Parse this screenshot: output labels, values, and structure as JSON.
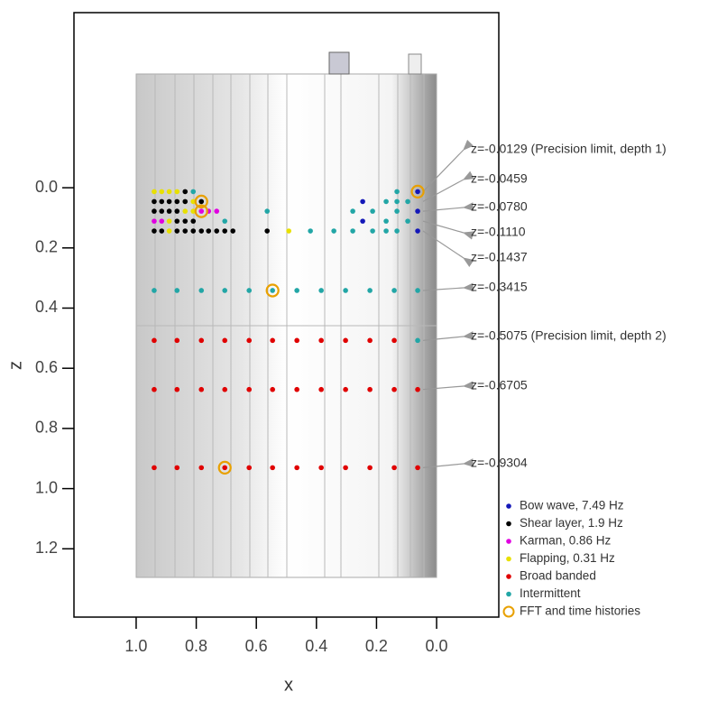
{
  "chart_data": {
    "type": "scatter",
    "x_label": "x",
    "y_label": "z",
    "xlim": [
      1.207,
      -0.207
    ],
    "ylim": [
      -0.582,
      1.427
    ],
    "xticks": [
      {
        "value": 1,
        "label": "1.0"
      },
      0.8,
      0.6,
      0.4,
      0.2,
      {
        "value": 0,
        "label": "0.0"
      }
    ],
    "yticks": [
      {
        "value": 0,
        "label": "0.0"
      },
      0.2,
      0.4,
      0.6,
      0.8,
      {
        "value": 1,
        "label": "1.0"
      },
      1.2
    ],
    "series": [
      {
        "name": "Bow wave, 7.49 Hz",
        "color": "#1418b8",
        "marker": "dot",
        "x": [
          0.063,
          0.246,
          0.063,
          0.246,
          0.063
        ],
        "values": [
          0.0129,
          0.0459,
          0.078,
          0.111,
          0.1437
        ]
      },
      {
        "name": "Shear layer, 1.9 Hz",
        "color": "#000000",
        "marker": "dot",
        "x": [
          0.837,
          0.94,
          0.915,
          0.89,
          0.864,
          0.837,
          0.783,
          0.94,
          0.915,
          0.89,
          0.864,
          0.864,
          0.837,
          0.81,
          0.94,
          0.915,
          0.864,
          0.837,
          0.81,
          0.783,
          0.759,
          0.732,
          0.705,
          0.678,
          0.564
        ],
        "values": [
          0.0129,
          0.0459,
          0.0459,
          0.0459,
          0.0459,
          0.0459,
          0.0459,
          0.078,
          0.078,
          0.078,
          0.078,
          0.111,
          0.111,
          0.111,
          0.1437,
          0.1437,
          0.1437,
          0.1437,
          0.1437,
          0.1437,
          0.1437,
          0.1437,
          0.1437,
          0.1437,
          0.1437
        ]
      },
      {
        "name": "Karman, 0.86 Hz",
        "color": "#e000e0",
        "marker": "dot",
        "x": [
          0.783,
          0.759,
          0.732,
          0.94,
          0.915
        ],
        "values": [
          0.078,
          0.078,
          0.078,
          0.111,
          0.111
        ]
      },
      {
        "name": "Flapping, 0.31 Hz",
        "color": "#e8e000",
        "marker": "dot",
        "x": [
          0.94,
          0.915,
          0.89,
          0.864,
          0.81,
          0.837,
          0.81,
          0.89,
          0.89,
          0.492
        ],
        "values": [
          0.0129,
          0.0129,
          0.0129,
          0.0129,
          0.0459,
          0.078,
          0.078,
          0.111,
          0.1437,
          0.1437
        ]
      },
      {
        "name": "Broad banded",
        "color": "#e00000",
        "marker": "dot",
        "x": [
          0.94,
          0.864,
          0.783,
          0.705,
          0.624,
          0.546,
          0.465,
          0.384,
          0.303,
          0.222,
          0.141,
          0.94,
          0.864,
          0.783,
          0.705,
          0.624,
          0.546,
          0.465,
          0.384,
          0.303,
          0.222,
          0.141,
          0.063,
          0.94,
          0.864,
          0.783,
          0.705,
          0.624,
          0.546,
          0.465,
          0.384,
          0.303,
          0.222,
          0.141,
          0.063
        ],
        "values": [
          0.5075,
          0.5075,
          0.5075,
          0.5075,
          0.5075,
          0.5075,
          0.5075,
          0.5075,
          0.5075,
          0.5075,
          0.5075,
          0.6705,
          0.6705,
          0.6705,
          0.6705,
          0.6705,
          0.6705,
          0.6705,
          0.6705,
          0.6705,
          0.6705,
          0.6705,
          0.6705,
          0.9304,
          0.9304,
          0.9304,
          0.9304,
          0.9304,
          0.9304,
          0.9304,
          0.9304,
          0.9304,
          0.9304,
          0.9304,
          0.9304
        ]
      },
      {
        "name": "Intermittent",
        "color": "#22a6a6",
        "marker": "dot",
        "x": [
          0.81,
          0.132,
          0.168,
          0.132,
          0.096,
          0.564,
          0.279,
          0.213,
          0.132,
          0.705,
          0.168,
          0.096,
          0.42,
          0.342,
          0.279,
          0.213,
          0.168,
          0.132,
          0.94,
          0.864,
          0.783,
          0.705,
          0.624,
          0.546,
          0.465,
          0.384,
          0.303,
          0.222,
          0.141,
          0.063,
          0.063
        ],
        "values": [
          0.0129,
          0.0129,
          0.0459,
          0.0459,
          0.0459,
          0.078,
          0.078,
          0.078,
          0.078,
          0.111,
          0.111,
          0.111,
          0.1437,
          0.1437,
          0.1437,
          0.1437,
          0.1437,
          0.1437,
          0.3415,
          0.3415,
          0.3415,
          0.3415,
          0.3415,
          0.3415,
          0.3415,
          0.3415,
          0.3415,
          0.3415,
          0.3415,
          0.3415,
          0.5075
        ]
      },
      {
        "name": "FFT and time histories",
        "color": "#e8a000",
        "marker": "ring",
        "x": [
          0.063,
          0.783,
          0.783,
          0.546,
          0.705
        ],
        "values": [
          0.0129,
          0.0459,
          0.078,
          0.3415,
          0.9304
        ]
      }
    ],
    "annotations": [
      "z=-0.0129  (Precision limit, depth 1)",
      "z=-0.0459",
      "z=-0.0780",
      "z=-0.1110",
      "z=-0.1437",
      "z=-0.3415",
      "z=-0.5075  (Precision limit, depth 2)",
      "z=-0.6705",
      "z=-0.9304"
    ]
  }
}
